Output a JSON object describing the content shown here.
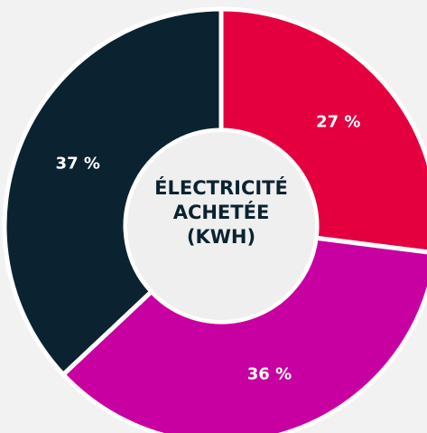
{
  "chart_data": {
    "type": "donut",
    "title": "ÉLECTRICITÉ ACHETÉE (KWH)",
    "values": [
      27,
      36,
      37
    ],
    "value_labels": [
      "27 %",
      "36 %",
      "37 %"
    ],
    "colors": [
      "#e4003f",
      "#c800a1",
      "#0b2230"
    ]
  }
}
